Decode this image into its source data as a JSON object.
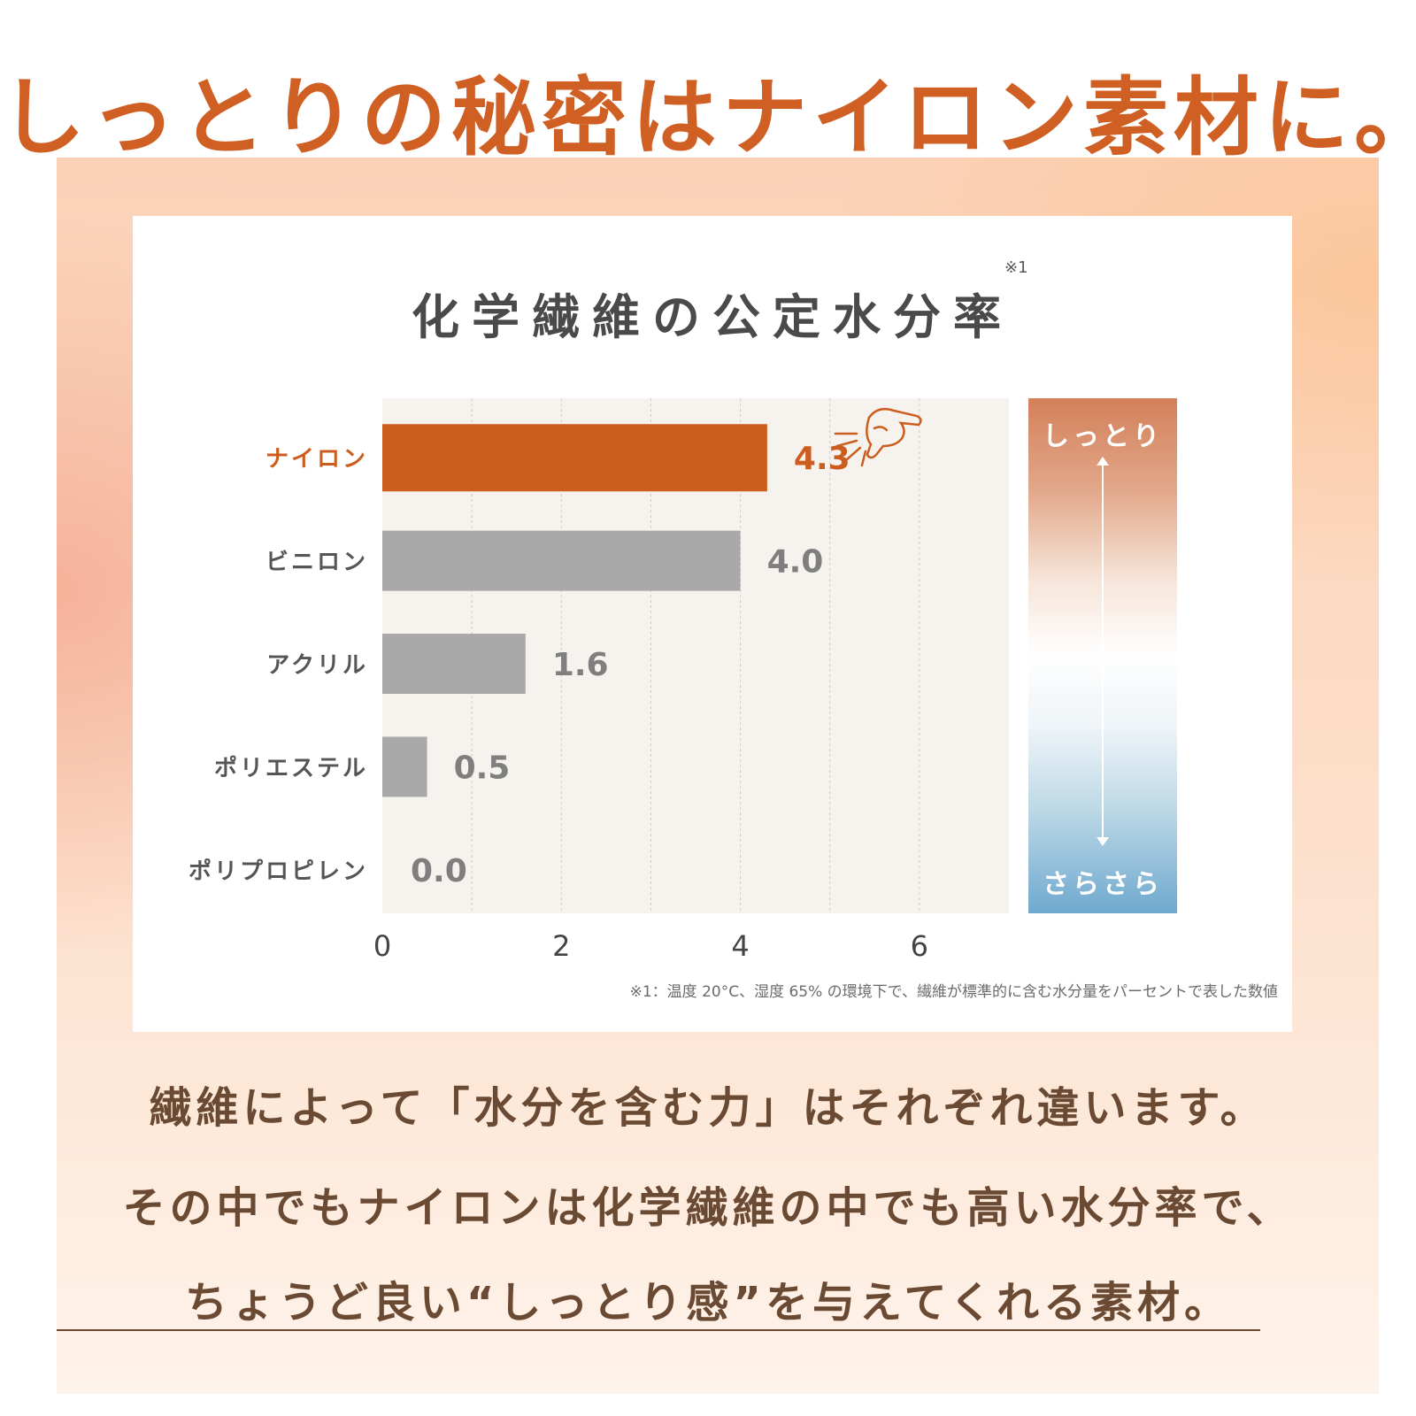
{
  "headline": "しっとりの秘密はナイロン素材に。",
  "chart_data": {
    "type": "bar",
    "orientation": "horizontal",
    "title": "化学繊維の公定水分率",
    "title_note": "※1",
    "categories": [
      "ナイロン",
      "ビニロン",
      "アクリル",
      "ポリエステル",
      "ポリプロピレン"
    ],
    "values": [
      4.3,
      4.0,
      1.6,
      0.5,
      0.0
    ],
    "value_labels": [
      "4.3",
      "4.0",
      "1.6",
      "0.5",
      "0.0"
    ],
    "highlight_index": 0,
    "xlim": [
      0,
      7
    ],
    "xticks": [
      "0",
      "2",
      "4",
      "6"
    ],
    "grid": true,
    "colors": {
      "highlight": "#cb5d1f",
      "default": "#a9a9a9",
      "highlight_label": "#cb5d1f",
      "default_label": "#7f7f7f",
      "category_label": "#555555"
    },
    "gauge": {
      "top_label": "しっとり",
      "bottom_label": "さらさら"
    },
    "footnote": "※1：温度 20°C、湿度 65% の環境下で、繊維が標準的に含む水分量をパーセントで表した数値"
  },
  "body_lines": [
    "繊維によって「水分を含む力」はそれぞれ違います。",
    "その中でもナイロンは化学繊維の中でも高い水分率で、",
    "ちょうど良い“しっとり感”を与えてくれる素材。"
  ],
  "icons": {
    "pointer": "pointing-hand-icon"
  }
}
